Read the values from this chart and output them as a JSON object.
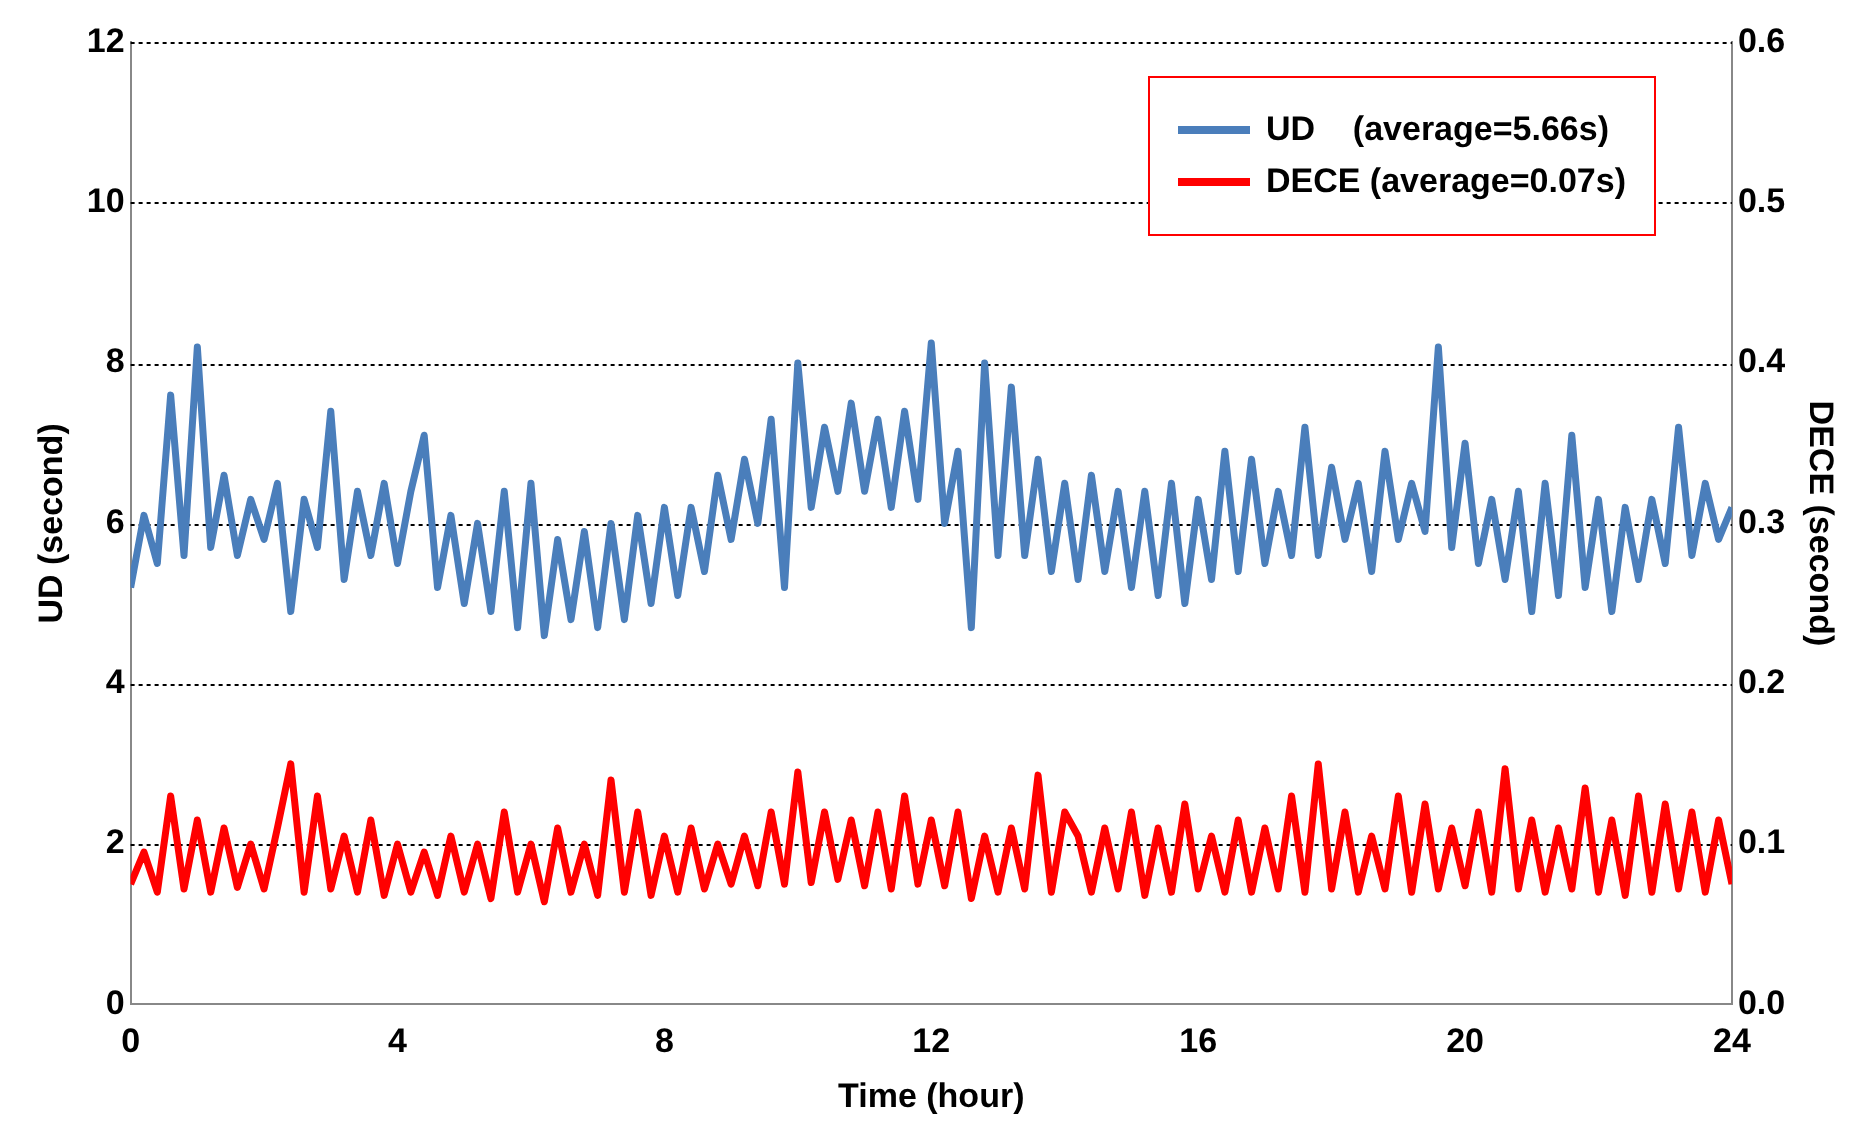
{
  "chart_data": {
    "type": "line",
    "xlabel": "Time (hour)",
    "ylabel": "UD (second)",
    "y2label": "DECE (second)",
    "x": [
      0,
      0.2,
      0.4,
      0.6,
      0.8,
      1,
      1.2,
      1.4,
      1.6,
      1.8,
      2,
      2.2,
      2.4,
      2.6,
      2.8,
      3,
      3.2,
      3.4,
      3.6,
      3.8,
      4,
      4.2,
      4.4,
      4.6,
      4.8,
      5,
      5.2,
      5.4,
      5.6,
      5.8,
      6,
      6.2,
      6.4,
      6.6,
      6.8,
      7,
      7.2,
      7.4,
      7.6,
      7.8,
      8,
      8.2,
      8.4,
      8.6,
      8.8,
      9,
      9.2,
      9.4,
      9.6,
      9.8,
      10,
      10.2,
      10.4,
      10.6,
      10.8,
      11,
      11.2,
      11.4,
      11.6,
      11.8,
      12,
      12.2,
      12.4,
      12.6,
      12.8,
      13,
      13.2,
      13.4,
      13.6,
      13.8,
      14,
      14.2,
      14.4,
      14.6,
      14.8,
      15,
      15.2,
      15.4,
      15.6,
      15.8,
      16,
      16.2,
      16.4,
      16.6,
      16.8,
      17,
      17.2,
      17.4,
      17.6,
      17.8,
      18,
      18.2,
      18.4,
      18.6,
      18.8,
      19,
      19.2,
      19.4,
      19.6,
      19.8,
      20,
      20.2,
      20.4,
      20.6,
      20.8,
      21,
      21.2,
      21.4,
      21.6,
      21.8,
      22,
      22.2,
      22.4,
      22.6,
      22.8,
      23,
      23.2,
      23.4,
      23.6,
      23.8,
      24
    ],
    "series": [
      {
        "name": "UD    (average=5.66s)",
        "color": "#4a7ebb",
        "values": [
          5.2,
          6.1,
          5.5,
          7.6,
          5.6,
          8.2,
          5.7,
          6.6,
          5.6,
          6.3,
          5.8,
          6.5,
          4.9,
          6.3,
          5.7,
          7.4,
          5.3,
          6.4,
          5.6,
          6.5,
          5.5,
          6.4,
          7.1,
          5.2,
          6.1,
          5.0,
          6.0,
          4.9,
          6.4,
          4.7,
          6.5,
          4.6,
          5.8,
          4.8,
          5.9,
          4.7,
          6.0,
          4.8,
          6.1,
          5.0,
          6.2,
          5.1,
          6.2,
          5.4,
          6.6,
          5.8,
          6.8,
          6.0,
          7.3,
          5.2,
          8.0,
          6.2,
          7.2,
          6.4,
          7.5,
          6.4,
          7.3,
          6.2,
          7.4,
          6.3,
          8.25,
          6.0,
          6.9,
          4.7,
          8.0,
          5.6,
          7.7,
          5.6,
          6.8,
          5.4,
          6.5,
          5.3,
          6.6,
          5.4,
          6.4,
          5.2,
          6.4,
          5.1,
          6.5,
          5.0,
          6.3,
          5.3,
          6.9,
          5.4,
          6.8,
          5.5,
          6.4,
          5.6,
          7.2,
          5.6,
          6.7,
          5.8,
          6.5,
          5.4,
          6.9,
          5.8,
          6.5,
          5.9,
          8.2,
          5.7,
          7.0,
          5.5,
          6.3,
          5.3,
          6.4,
          4.9,
          6.5,
          5.1,
          7.1,
          5.2,
          6.3,
          4.9,
          6.2,
          5.3,
          6.3,
          5.5,
          7.2,
          5.6,
          6.5,
          5.8,
          6.2
        ]
      },
      {
        "name": "DECE (average=0.07s)",
        "color": "#ff0000",
        "axis": "y2",
        "values": [
          0.075,
          0.095,
          0.07,
          0.13,
          0.072,
          0.115,
          0.07,
          0.11,
          0.073,
          0.1,
          0.072,
          0.11,
          0.15,
          0.07,
          0.13,
          0.072,
          0.105,
          0.07,
          0.115,
          0.068,
          0.1,
          0.07,
          0.095,
          0.068,
          0.105,
          0.07,
          0.1,
          0.066,
          0.12,
          0.07,
          0.1,
          0.064,
          0.11,
          0.07,
          0.1,
          0.068,
          0.14,
          0.07,
          0.12,
          0.068,
          0.105,
          0.07,
          0.11,
          0.072,
          0.1,
          0.075,
          0.105,
          0.074,
          0.12,
          0.075,
          0.145,
          0.076,
          0.12,
          0.078,
          0.115,
          0.074,
          0.12,
          0.072,
          0.13,
          0.075,
          0.115,
          0.074,
          0.12,
          0.066,
          0.105,
          0.07,
          0.11,
          0.072,
          0.143,
          0.07,
          0.12,
          0.105,
          0.07,
          0.11,
          0.072,
          0.12,
          0.068,
          0.11,
          0.07,
          0.125,
          0.072,
          0.105,
          0.07,
          0.115,
          0.07,
          0.11,
          0.072,
          0.13,
          0.07,
          0.15,
          0.072,
          0.12,
          0.07,
          0.105,
          0.072,
          0.13,
          0.07,
          0.125,
          0.072,
          0.11,
          0.074,
          0.12,
          0.07,
          0.147,
          0.072,
          0.115,
          0.07,
          0.11,
          0.072,
          0.135,
          0.07,
          0.115,
          0.068,
          0.13,
          0.07,
          0.125,
          0.072,
          0.12,
          0.07,
          0.115,
          0.075
        ]
      }
    ],
    "xlim": [
      0,
      24
    ],
    "xticks": [
      0,
      4,
      8,
      12,
      16,
      20,
      24
    ],
    "ylim": [
      0,
      12
    ],
    "yticks": [
      0,
      2,
      4,
      6,
      8,
      10,
      12
    ],
    "y2lim": [
      0,
      0.6
    ],
    "y2ticks": [
      {
        "value": 0,
        "label": "0.0"
      },
      {
        "value": 0.1,
        "label": "0.1"
      },
      {
        "value": 0.2,
        "label": "0.2"
      },
      {
        "value": 0.3,
        "label": "0.3"
      },
      {
        "value": 0.4,
        "label": "0.4"
      },
      {
        "value": 0.5,
        "label": "0.5"
      },
      {
        "value": 0.6,
        "label": "0.6"
      }
    ],
    "grid": "y",
    "legend": "top right",
    "marker": "none",
    "line_style": "solid"
  }
}
